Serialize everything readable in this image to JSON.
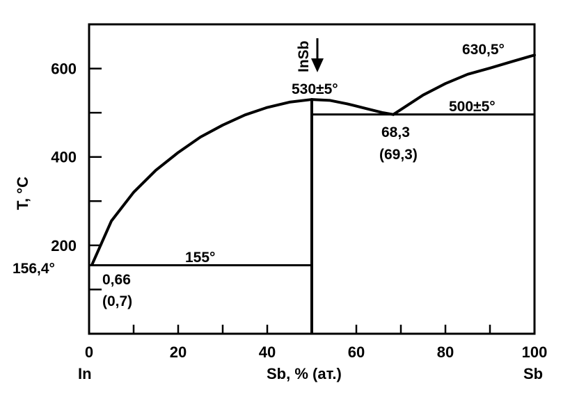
{
  "chart_data": {
    "type": "line",
    "title": "",
    "xlabel": "Sb, % (ат.)",
    "ylabel": "T, °C",
    "xlim": [
      0,
      100
    ],
    "ylim": [
      0,
      700
    ],
    "x_major_ticks": [
      0,
      20,
      40,
      60,
      80,
      100
    ],
    "x_minor_ticks": [
      10,
      30,
      50,
      70,
      90
    ],
    "y_major_ticks": [
      200,
      400,
      600
    ],
    "y_minor_ticks": [
      100,
      300,
      500
    ],
    "x_tick_labels": [
      "0",
      "20",
      "40",
      "60",
      "80",
      "100"
    ],
    "y_tick_labels": [
      "200",
      "400",
      "600"
    ],
    "x_end_labels": {
      "left": "In",
      "right": "Sb"
    },
    "compound": {
      "label": "InSb",
      "x": 50
    },
    "series": [
      {
        "points": [
          [
            0.66,
            156.4
          ],
          [
            5,
            255
          ],
          [
            10,
            320
          ],
          [
            15,
            370
          ],
          [
            20,
            410
          ],
          [
            25,
            445
          ],
          [
            30,
            472
          ],
          [
            35,
            495
          ],
          [
            40,
            512
          ],
          [
            45,
            524
          ],
          [
            50,
            530
          ]
        ]
      },
      {
        "points": [
          [
            50,
            530
          ],
          [
            54,
            528
          ],
          [
            58,
            520
          ],
          [
            62,
            510
          ],
          [
            66,
            500
          ],
          [
            68.3,
            496
          ]
        ]
      },
      {
        "points": [
          [
            68.3,
            496
          ],
          [
            75,
            540
          ],
          [
            80,
            566
          ],
          [
            85,
            587
          ],
          [
            90,
            601
          ],
          [
            95,
            616
          ],
          [
            100,
            630.5
          ]
        ]
      }
    ],
    "isotherms": [
      {
        "y": 155,
        "x_from": 0,
        "x_to": 50
      },
      {
        "y": 496,
        "x_from": 50,
        "x_to": 100
      }
    ],
    "annotations": {
      "in_melting": "156,4°",
      "eutectic_low_temp": "155°",
      "eutectic_low_comp": "0,66",
      "eutectic_low_comp_alt": "(0,7)",
      "compound_melting": "530±5°",
      "eutectic_high_comp": "68,3",
      "eutectic_high_comp_alt": "(69,3)",
      "eutectic_high_temp": "500±5°",
      "sb_melting": "630,5°"
    }
  }
}
